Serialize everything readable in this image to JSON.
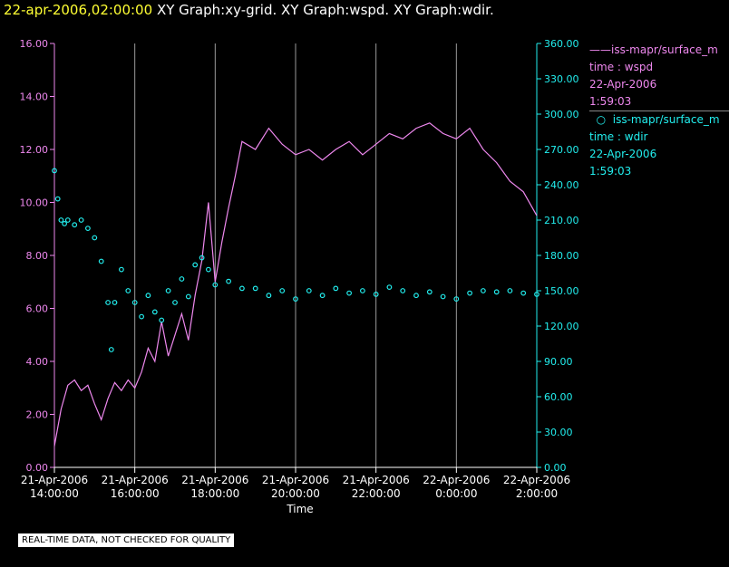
{
  "title": {
    "datetime": "22-apr-2006,02:00:00",
    "graphs": "XY Graph:xy-grid.  XY Graph:wspd.  XY Graph:wdir."
  },
  "notice": "REAL-TIME DATA, NOT CHECKED FOR QUALITY",
  "legend": {
    "series1": {
      "name": "iss-mapr/surface_m",
      "line2": "time : wspd",
      "line3": "22-Apr-2006",
      "line4": "1:59:03"
    },
    "series2": {
      "name": "iss-mapr/surface_m",
      "line2": "time : wdir",
      "line3": "22-Apr-2006",
      "line4": "1:59:03"
    }
  },
  "colors": {
    "wspd": "#ee88ee",
    "wdir": "#22eeee",
    "grid": "#9a9a9a",
    "background": "#000000",
    "title_date": "#ffff33"
  },
  "chart_data": {
    "type": "line",
    "xlabel": "Time",
    "x_ticks": [
      [
        "21-Apr-2006",
        "14:00:00"
      ],
      [
        "21-Apr-2006",
        "16:00:00"
      ],
      [
        "21-Apr-2006",
        "18:00:00"
      ],
      [
        "21-Apr-2006",
        "20:00:00"
      ],
      [
        "21-Apr-2006",
        "22:00:00"
      ],
      [
        "22-Apr-2006",
        "0:00:00"
      ],
      [
        "22-Apr-2006",
        "2:00:00"
      ]
    ],
    "xlim": [
      "2006-04-21 14:00:00",
      "2006-04-22 02:00:00"
    ],
    "y_left": {
      "ylim": [
        0,
        16
      ],
      "ticks": [
        "0.00",
        "2.00",
        "4.00",
        "6.00",
        "8.00",
        "10.00",
        "12.00",
        "14.00",
        "16.00"
      ]
    },
    "y_right": {
      "ylim": [
        0,
        360
      ],
      "ticks": [
        "0.00",
        "30.00",
        "60.00",
        "90.00",
        "120.00",
        "150.00",
        "180.00",
        "210.00",
        "240.00",
        "270.00",
        "300.00",
        "330.00",
        "360.00"
      ]
    },
    "grid": "vertical",
    "series": [
      {
        "style": "line",
        "axis": "left",
        "points": [
          [
            "2006-04-21 14:00:00",
            0.8
          ],
          [
            "2006-04-21 14:10:00",
            2.2
          ],
          [
            "2006-04-21 14:20:00",
            3.1
          ],
          [
            "2006-04-21 14:30:00",
            3.3
          ],
          [
            "2006-04-21 14:40:00",
            2.9
          ],
          [
            "2006-04-21 14:50:00",
            3.1
          ],
          [
            "2006-04-21 15:00:00",
            2.4
          ],
          [
            "2006-04-21 15:10:00",
            1.8
          ],
          [
            "2006-04-21 15:20:00",
            2.6
          ],
          [
            "2006-04-21 15:30:00",
            3.2
          ],
          [
            "2006-04-21 15:40:00",
            2.9
          ],
          [
            "2006-04-21 15:50:00",
            3.3
          ],
          [
            "2006-04-21 16:00:00",
            3.0
          ],
          [
            "2006-04-21 16:10:00",
            3.6
          ],
          [
            "2006-04-21 16:20:00",
            4.5
          ],
          [
            "2006-04-21 16:30:00",
            4.0
          ],
          [
            "2006-04-21 16:40:00",
            5.5
          ],
          [
            "2006-04-21 16:50:00",
            4.2
          ],
          [
            "2006-04-21 17:00:00",
            5.0
          ],
          [
            "2006-04-21 17:10:00",
            5.8
          ],
          [
            "2006-04-21 17:20:00",
            4.8
          ],
          [
            "2006-04-21 17:30:00",
            6.5
          ],
          [
            "2006-04-21 17:40:00",
            7.8
          ],
          [
            "2006-04-21 17:50:00",
            10.0
          ],
          [
            "2006-04-21 18:00:00",
            7.0
          ],
          [
            "2006-04-21 18:10:00",
            8.5
          ],
          [
            "2006-04-21 18:20:00",
            9.8
          ],
          [
            "2006-04-21 18:30:00",
            11.0
          ],
          [
            "2006-04-21 18:40:00",
            12.3
          ],
          [
            "2006-04-21 19:00:00",
            12.0
          ],
          [
            "2006-04-21 19:20:00",
            12.8
          ],
          [
            "2006-04-21 19:40:00",
            12.2
          ],
          [
            "2006-04-21 20:00:00",
            11.8
          ],
          [
            "2006-04-21 20:20:00",
            12.0
          ],
          [
            "2006-04-21 20:40:00",
            11.6
          ],
          [
            "2006-04-21 21:00:00",
            12.0
          ],
          [
            "2006-04-21 21:20:00",
            12.3
          ],
          [
            "2006-04-21 21:40:00",
            11.8
          ],
          [
            "2006-04-21 22:00:00",
            12.2
          ],
          [
            "2006-04-21 22:20:00",
            12.6
          ],
          [
            "2006-04-21 22:40:00",
            12.4
          ],
          [
            "2006-04-21 23:00:00",
            12.8
          ],
          [
            "2006-04-21 23:20:00",
            13.0
          ],
          [
            "2006-04-21 23:40:00",
            12.6
          ],
          [
            "2006-04-22 00:00:00",
            12.4
          ],
          [
            "2006-04-22 00:20:00",
            12.8
          ],
          [
            "2006-04-22 00:40:00",
            12.0
          ],
          [
            "2006-04-22 01:00:00",
            11.5
          ],
          [
            "2006-04-22 01:20:00",
            10.8
          ],
          [
            "2006-04-22 01:40:00",
            10.4
          ],
          [
            "2006-04-22 02:00:00",
            9.5
          ]
        ]
      },
      {
        "style": "scatter",
        "axis": "right",
        "points": [
          [
            "2006-04-21 14:00:00",
            252
          ],
          [
            "2006-04-21 14:05:00",
            228
          ],
          [
            "2006-04-21 14:10:00",
            210
          ],
          [
            "2006-04-21 14:15:00",
            207
          ],
          [
            "2006-04-21 14:20:00",
            210
          ],
          [
            "2006-04-21 14:30:00",
            206
          ],
          [
            "2006-04-21 14:40:00",
            210
          ],
          [
            "2006-04-21 14:50:00",
            203
          ],
          [
            "2006-04-21 15:00:00",
            195
          ],
          [
            "2006-04-21 15:10:00",
            175
          ],
          [
            "2006-04-21 15:20:00",
            140
          ],
          [
            "2006-04-21 15:25:00",
            100
          ],
          [
            "2006-04-21 15:30:00",
            140
          ],
          [
            "2006-04-21 15:40:00",
            168
          ],
          [
            "2006-04-21 15:50:00",
            150
          ],
          [
            "2006-04-21 16:00:00",
            140
          ],
          [
            "2006-04-21 16:10:00",
            128
          ],
          [
            "2006-04-21 16:20:00",
            146
          ],
          [
            "2006-04-21 16:30:00",
            132
          ],
          [
            "2006-04-21 16:40:00",
            125
          ],
          [
            "2006-04-21 16:50:00",
            150
          ],
          [
            "2006-04-21 17:00:00",
            140
          ],
          [
            "2006-04-21 17:10:00",
            160
          ],
          [
            "2006-04-21 17:20:00",
            145
          ],
          [
            "2006-04-21 17:30:00",
            172
          ],
          [
            "2006-04-21 17:40:00",
            178
          ],
          [
            "2006-04-21 17:50:00",
            168
          ],
          [
            "2006-04-21 18:00:00",
            155
          ],
          [
            "2006-04-21 18:20:00",
            158
          ],
          [
            "2006-04-21 18:40:00",
            152
          ],
          [
            "2006-04-21 19:00:00",
            152
          ],
          [
            "2006-04-21 19:20:00",
            146
          ],
          [
            "2006-04-21 19:40:00",
            150
          ],
          [
            "2006-04-21 20:00:00",
            143
          ],
          [
            "2006-04-21 20:20:00",
            150
          ],
          [
            "2006-04-21 20:40:00",
            146
          ],
          [
            "2006-04-21 21:00:00",
            152
          ],
          [
            "2006-04-21 21:20:00",
            148
          ],
          [
            "2006-04-21 21:40:00",
            150
          ],
          [
            "2006-04-21 22:00:00",
            147
          ],
          [
            "2006-04-21 22:20:00",
            153
          ],
          [
            "2006-04-21 22:40:00",
            150
          ],
          [
            "2006-04-21 23:00:00",
            146
          ],
          [
            "2006-04-21 23:20:00",
            149
          ],
          [
            "2006-04-21 23:40:00",
            145
          ],
          [
            "2006-04-22 00:00:00",
            143
          ],
          [
            "2006-04-22 00:20:00",
            148
          ],
          [
            "2006-04-22 00:40:00",
            150
          ],
          [
            "2006-04-22 01:00:00",
            149
          ],
          [
            "2006-04-22 01:20:00",
            150
          ],
          [
            "2006-04-22 01:40:00",
            148
          ],
          [
            "2006-04-22 02:00:00",
            147
          ]
        ]
      }
    ]
  }
}
